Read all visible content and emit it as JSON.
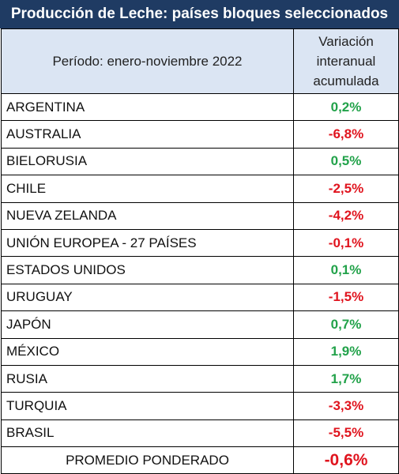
{
  "title": "Producción de Leche: países bloques seleccionados",
  "header": {
    "period": "Período: enero-noviembre 2022",
    "variation_line1": "Variación",
    "variation_line2": "interanual",
    "variation_line3": "acumulada"
  },
  "colors": {
    "title_bg": "#1f3b63",
    "header_bg": "#dbe5f3",
    "positive": "#22a24a",
    "negative": "#e0141e"
  },
  "rows": [
    {
      "country": "ARGENTINA",
      "value": "0,2%",
      "sign": "pos"
    },
    {
      "country": "AUSTRALIA",
      "value": "-6,8%",
      "sign": "neg"
    },
    {
      "country": "BIELORUSIA",
      "value": "0,5%",
      "sign": "pos"
    },
    {
      "country": "CHILE",
      "value": "-2,5%",
      "sign": "neg"
    },
    {
      "country": "NUEVA ZELANDA",
      "value": "-4,2%",
      "sign": "neg"
    },
    {
      "country": "UNIÓN EUROPEA - 27 PAÍSES",
      "value": "-0,1%",
      "sign": "neg"
    },
    {
      "country": "ESTADOS UNIDOS",
      "value": "0,1%",
      "sign": "pos"
    },
    {
      "country": "URUGUAY",
      "value": "-1,5%",
      "sign": "neg"
    },
    {
      "country": "JAPÓN",
      "value": "0,7%",
      "sign": "pos"
    },
    {
      "country": "MÉXICO",
      "value": "1,9%",
      "sign": "pos"
    },
    {
      "country": "RUSIA",
      "value": "1,7%",
      "sign": "pos"
    },
    {
      "country": "TURQUIA",
      "value": "-3,3%",
      "sign": "neg"
    },
    {
      "country": "BRASIL",
      "value": "-5,5%",
      "sign": "neg"
    }
  ],
  "total": {
    "label": "PROMEDIO PONDERADO",
    "value": "-0,6%"
  }
}
